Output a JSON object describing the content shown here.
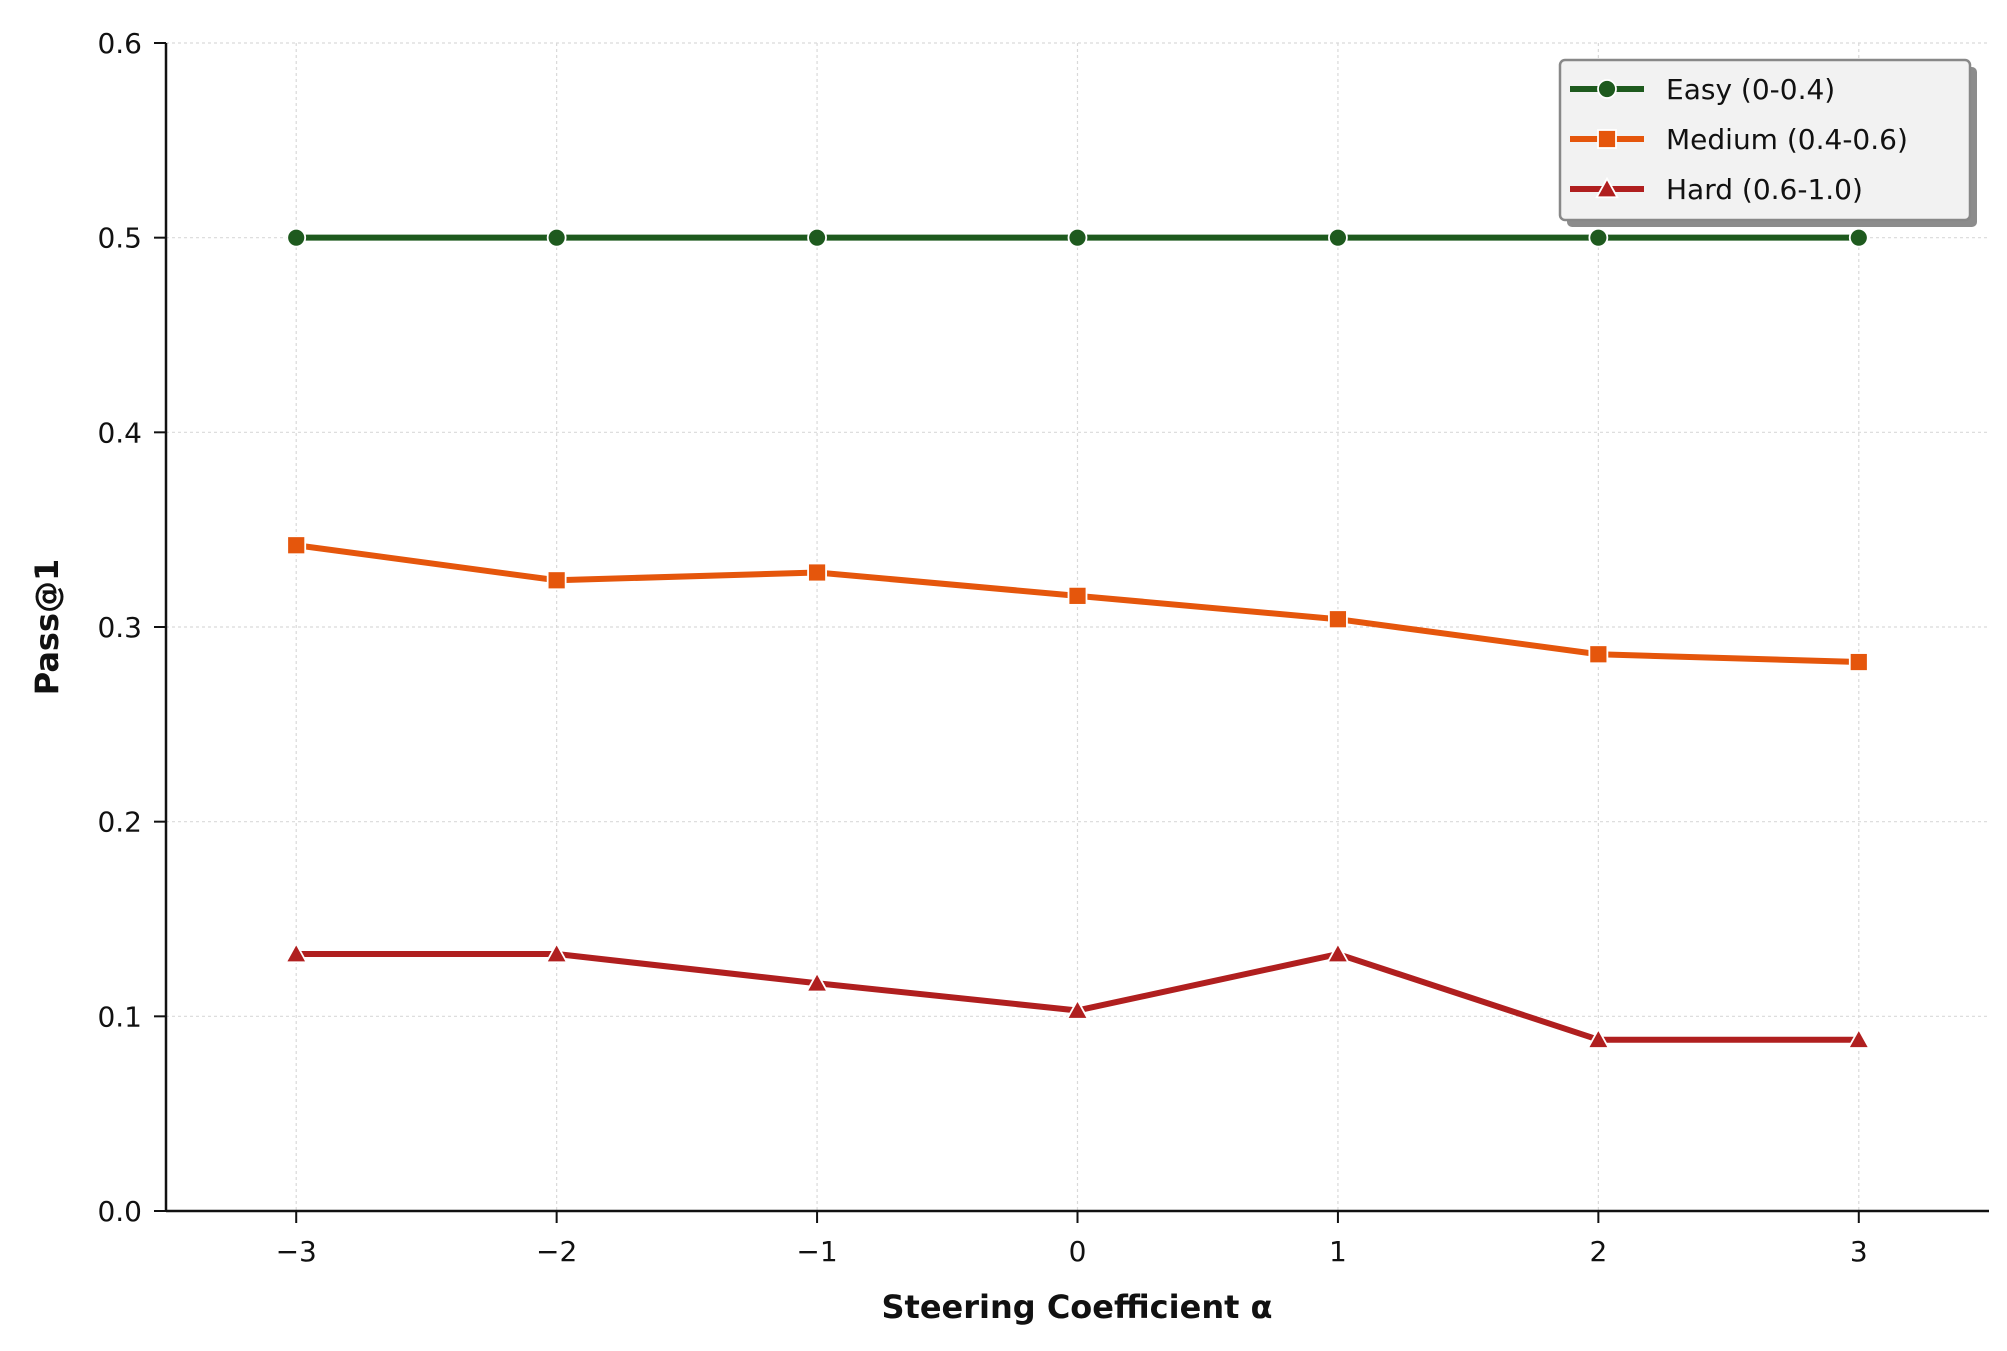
{
  "chart_data": {
    "type": "line",
    "title": "",
    "xlabel": "Steering Coefficient α",
    "ylabel": "Pass@1",
    "xlim": [
      -3.5,
      3.5
    ],
    "ylim": [
      0.0,
      0.6
    ],
    "x": [
      -3,
      -2,
      -1,
      0,
      1,
      2,
      3
    ],
    "x_tick_labels": [
      "−3",
      "−2",
      "−1",
      "0",
      "1",
      "2",
      "3"
    ],
    "y_ticks": [
      0.0,
      0.1,
      0.2,
      0.3,
      0.4,
      0.5,
      0.6
    ],
    "y_tick_labels": [
      "0.0",
      "0.1",
      "0.2",
      "0.3",
      "0.4",
      "0.5",
      "0.6"
    ],
    "grid": true,
    "legend_position": "top-right",
    "series": [
      {
        "name": "Easy (0-0.4)",
        "color": "#1e5a1e",
        "marker": "circle",
        "values": [
          0.5,
          0.5,
          0.5,
          0.5,
          0.5,
          0.5,
          0.5
        ]
      },
      {
        "name": "Medium (0.4-0.6)",
        "color": "#e5560c",
        "marker": "square",
        "values": [
          0.342,
          0.324,
          0.328,
          0.316,
          0.304,
          0.286,
          0.282
        ]
      },
      {
        "name": "Hard (0.6-1.0)",
        "color": "#b01f1f",
        "marker": "triangle",
        "values": [
          0.132,
          0.132,
          0.117,
          0.103,
          0.132,
          0.088,
          0.088
        ]
      }
    ]
  }
}
